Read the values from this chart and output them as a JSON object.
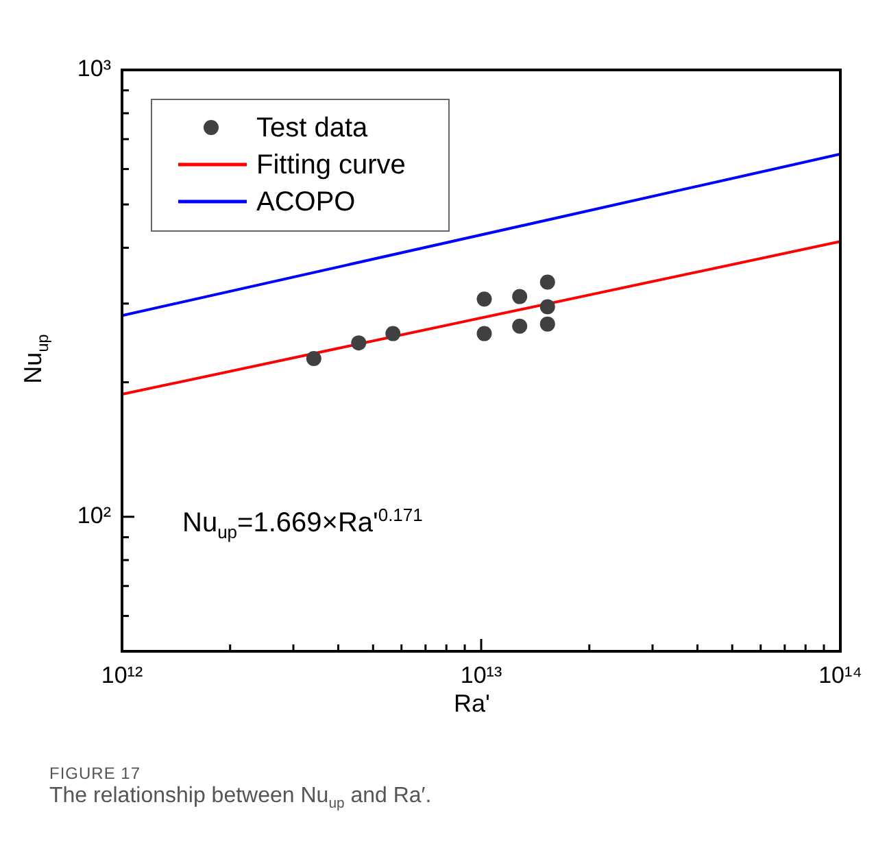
{
  "chart_data": {
    "type": "scatter",
    "xlabel": "Ra'",
    "ylabel": "Nu$_{up}$",
    "log": "xy",
    "grid": false,
    "legend": "top left",
    "xlim": [
      1000000000000.0,
      100000000000000.0
    ],
    "ylim": [
      50,
      1000
    ],
    "xticks": [
      {
        "value": 1000000000000.0,
        "label": "10¹²"
      },
      {
        "value": 2000000000000.0,
        "label": null
      },
      {
        "value": 3000000000000.0,
        "label": null
      },
      {
        "value": 4000000000000.0,
        "label": null
      },
      {
        "value": 5000000000000.0,
        "label": null
      },
      {
        "value": 6000000000000.0,
        "label": null
      },
      {
        "value": 7000000000000.0,
        "label": null
      },
      {
        "value": 8000000000000.0,
        "label": null
      },
      {
        "value": 9000000000000.0,
        "label": null
      },
      {
        "value": 10000000000000.0,
        "label": "10¹³"
      },
      {
        "value": 20000000000000.0,
        "label": null
      },
      {
        "value": 30000000000000.0,
        "label": null
      },
      {
        "value": 40000000000000.0,
        "label": null
      },
      {
        "value": 50000000000000.0,
        "label": null
      },
      {
        "value": 60000000000000.0,
        "label": null
      },
      {
        "value": 70000000000000.0,
        "label": null
      },
      {
        "value": 80000000000000.0,
        "label": null
      },
      {
        "value": 90000000000000.0,
        "label": null
      },
      {
        "value": 100000000000000.0,
        "label": "10¹⁴"
      }
    ],
    "yticks": [
      {
        "value": 60,
        "label": null
      },
      {
        "value": 70,
        "label": null
      },
      {
        "value": 80,
        "label": null
      },
      {
        "value": 90,
        "label": null
      },
      {
        "value": 100,
        "label": "10²"
      },
      {
        "value": 200,
        "label": null
      },
      {
        "value": 300,
        "label": null
      },
      {
        "value": 400,
        "label": null
      },
      {
        "value": 500,
        "label": null
      },
      {
        "value": 600,
        "label": null
      },
      {
        "value": 700,
        "label": null
      },
      {
        "value": 800,
        "label": null
      },
      {
        "value": 900,
        "label": null
      },
      {
        "value": 1000,
        "label": "10³"
      }
    ],
    "series": [
      {
        "name": "Test data",
        "marker": "circle",
        "color": "#404040",
        "x": [
          3420000000000.0,
          4560000000000.0,
          5680000000000.0,
          10200000000000.0,
          10200000000000.0,
          12800000000000.0,
          12800000000000.0,
          15300000000000.0,
          15300000000000.0,
          15300000000000.0
        ],
        "values": [
          226,
          245,
          257,
          307,
          257,
          311,
          267,
          335,
          295,
          270
        ]
      },
      {
        "name": "Fitting curve",
        "type": "line",
        "color": "#ff0000",
        "x": [
          1000000000000.0,
          100000000000000.0
        ],
        "values": [
          188,
          413
        ]
      },
      {
        "name": "ACOPO",
        "type": "line",
        "color": "#0000ff",
        "x": [
          1000000000000.0,
          100000000000000.0
        ],
        "values": [
          282,
          648
        ]
      }
    ],
    "annotations": [
      "Nu$_{up}$=1.669×Ra'$^{0.171}$",
      "FIGURE 17",
      "The relationship between Nu$_{up}$ and Ra′."
    ]
  }
}
